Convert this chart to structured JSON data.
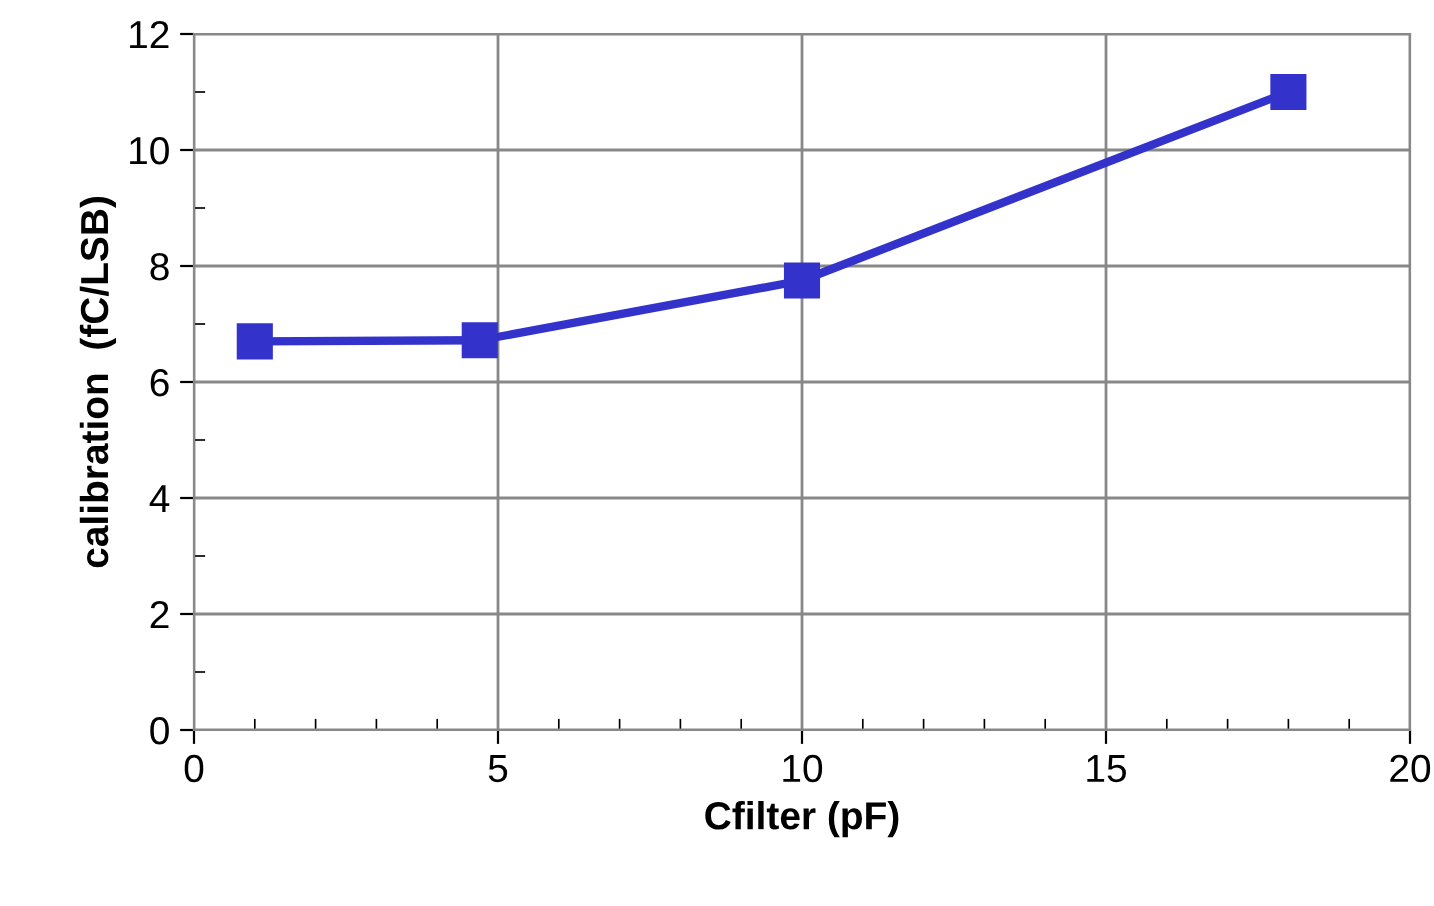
{
  "chart_data": {
    "type": "line",
    "xlabel": "Cfilter (pF)",
    "ylabel": "calibration  (fC/LSB)",
    "x": [
      1,
      4.7,
      10,
      18
    ],
    "series": [
      {
        "color": "#3333cc",
        "values": [
          6.7,
          6.72,
          7.75,
          11.0
        ]
      }
    ],
    "xlim": [
      0,
      20
    ],
    "xticks": [
      0,
      5,
      10,
      15,
      20
    ],
    "ylim": [
      0,
      12
    ],
    "yticks": [
      0,
      2,
      4,
      6,
      8,
      10,
      12
    ],
    "grid": true,
    "marker": "square",
    "line_style": "solid"
  }
}
